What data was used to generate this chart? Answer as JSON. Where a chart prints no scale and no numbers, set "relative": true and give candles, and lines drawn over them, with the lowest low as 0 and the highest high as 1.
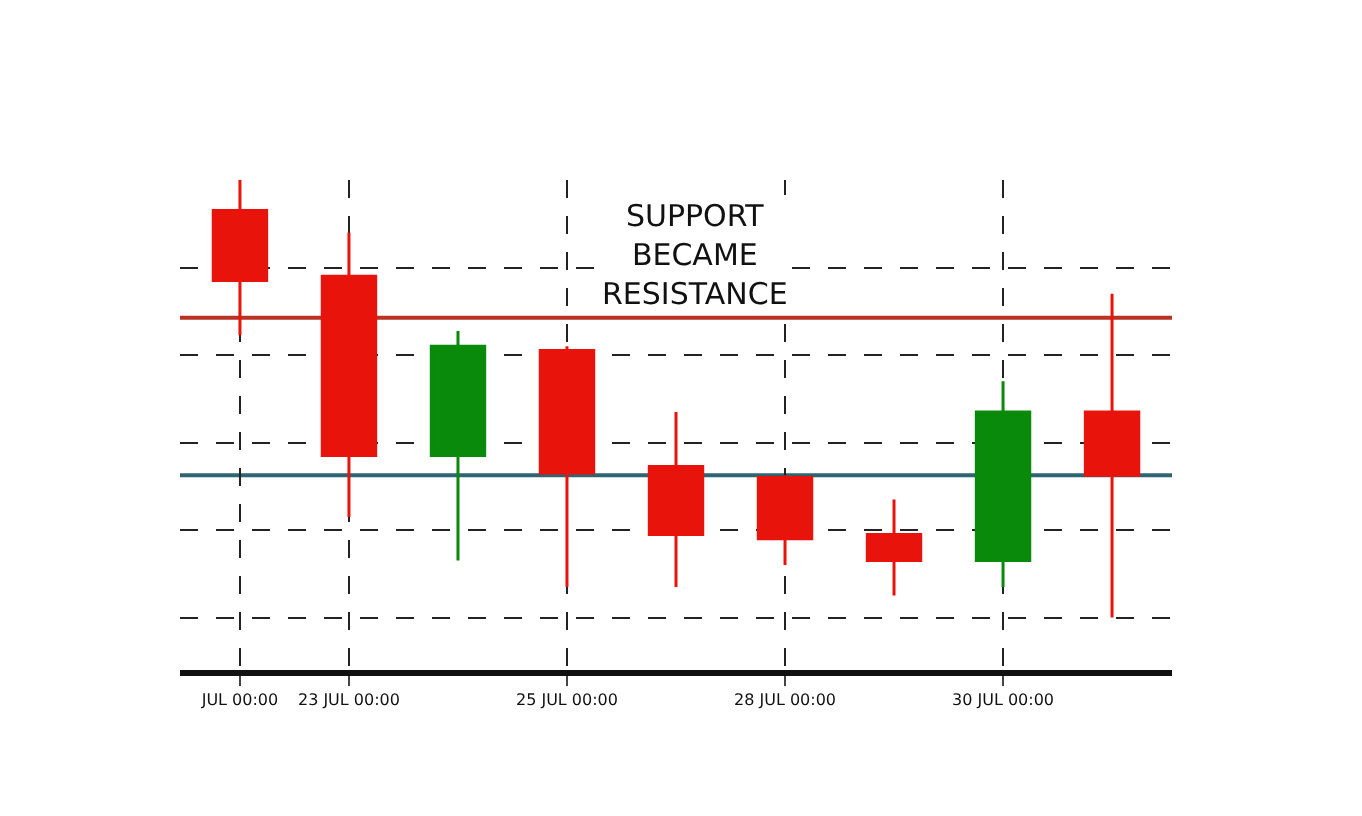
{
  "chart_data": {
    "type": "candlestick",
    "relative": true,
    "categories": [
      "JUL 00:00",
      "23 JUL 00:00",
      null,
      "25 JUL 00:00",
      null,
      "28 JUL 00:00",
      null,
      "30 JUL 00:00",
      null
    ],
    "ohlc": [
      [
        0.93,
        1,
        0.645,
        0.77
      ],
      [
        0.78,
        0.88,
        0.23,
        0.37
      ],
      [
        0.37,
        0.655,
        0.13,
        0.62
      ],
      [
        0.61,
        0.62,
        0.07,
        0.33
      ],
      [
        0.345,
        0.47,
        0.07,
        0.19
      ],
      [
        0.32,
        0.325,
        0.12,
        0.18
      ],
      [
        0.19,
        0.27,
        0.05,
        0.13
      ],
      [
        0.13,
        0.54,
        0.07,
        0.47
      ],
      [
        0.47,
        0.74,
        0,
        0.325
      ]
    ],
    "colors": [
      "#e8140c",
      "#e8140c",
      "#0a8a0a",
      "#e8140c",
      "#e8140c",
      "#e8140c",
      "#e8140c",
      "#0a8a0a",
      "#e8140c"
    ],
    "ref_lines": [
      {
        "axis": "y",
        "value": 0.685,
        "color": "#b93222",
        "line_style": "solid"
      },
      {
        "axis": "y",
        "value": 0.325,
        "color": "#2f6472",
        "line_style": "solid"
      }
    ],
    "annotations": [
      "SUPPORT\nBECAME\nRESISTANCE"
    ],
    "grid": true,
    "line_style": "dashed",
    "legend": false,
    "tick_labels": "x"
  }
}
